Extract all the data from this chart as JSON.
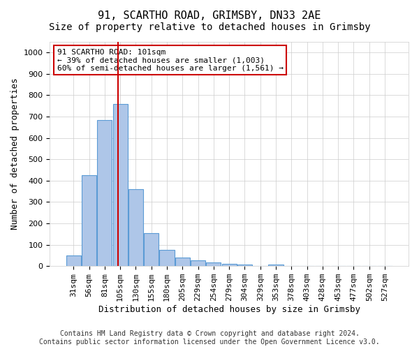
{
  "title": "91, SCARTHO ROAD, GRIMSBY, DN33 2AE",
  "subtitle": "Size of property relative to detached houses in Grimsby",
  "xlabel": "Distribution of detached houses by size in Grimsby",
  "ylabel": "Number of detached properties",
  "bar_color": "#aec6e8",
  "bar_edge_color": "#5b9bd5",
  "background_color": "#ffffff",
  "plot_bg_color": "#ffffff",
  "grid_color": "#cccccc",
  "categories": [
    "31sqm",
    "56sqm",
    "81sqm",
    "105sqm",
    "130sqm",
    "155sqm",
    "180sqm",
    "205sqm",
    "229sqm",
    "254sqm",
    "279sqm",
    "304sqm",
    "329sqm",
    "353sqm",
    "378sqm",
    "403sqm",
    "428sqm",
    "453sqm",
    "477sqm",
    "502sqm",
    "527sqm"
  ],
  "bar_heights": [
    50,
    425,
    685,
    760,
    360,
    155,
    75,
    40,
    27,
    17,
    10,
    7,
    0,
    7,
    0,
    0,
    0,
    0,
    0,
    0,
    0
  ],
  "ylim": [
    0,
    1050
  ],
  "yticks": [
    0,
    100,
    200,
    300,
    400,
    500,
    600,
    700,
    800,
    900,
    1000
  ],
  "property_line_x": 2.85,
  "property_line_color": "#cc0000",
  "annotation_text": "91 SCARTHO ROAD: 101sqm\n← 39% of detached houses are smaller (1,003)\n60% of semi-detached houses are larger (1,561) →",
  "annotation_box_color": "#cc0000",
  "footer_line1": "Contains HM Land Registry data © Crown copyright and database right 2024.",
  "footer_line2": "Contains public sector information licensed under the Open Government Licence v3.0.",
  "title_fontsize": 11,
  "subtitle_fontsize": 10,
  "xlabel_fontsize": 9,
  "ylabel_fontsize": 9,
  "tick_fontsize": 8,
  "annotation_fontsize": 8,
  "footer_fontsize": 7
}
